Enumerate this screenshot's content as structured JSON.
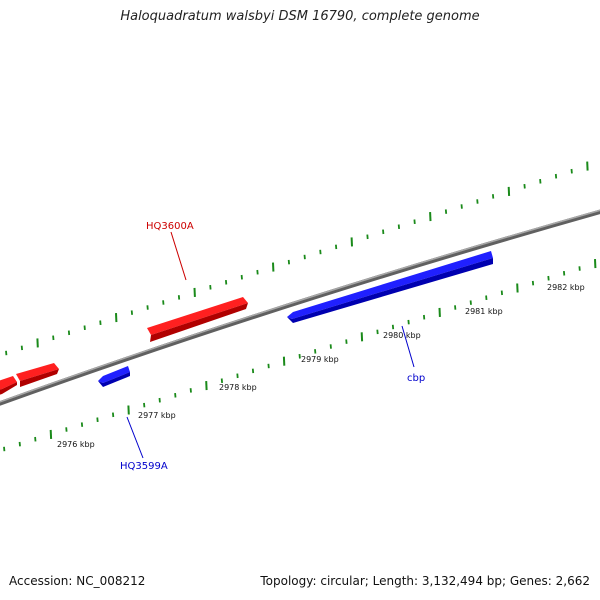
{
  "title": "Haloquadratum walsbyi DSM 16790, complete genome",
  "footer": {
    "accession": "Accession: NC_008212",
    "summary": "Topology: circular; Length: 3,132,494 bp; Genes: 2,662"
  },
  "colors": {
    "forward_gene": "#ff1a1a",
    "reverse_gene": "#1a1aff",
    "backbone": "#808080",
    "ticks": "#1a8a1a"
  },
  "scale_labels": [
    "2976 kbp",
    "2977 kbp",
    "2978 kbp",
    "2979 kbp",
    "2980 kbp",
    "2981 kbp",
    "2982 kbp"
  ],
  "gene_labels": {
    "hq3600a": "HQ3600A",
    "hq3599a": "HQ3599A",
    "cbp": "cbp"
  },
  "genes": [
    {
      "strand": "forward",
      "start_kbp": 2975.35,
      "end_kbp": 2975.55
    },
    {
      "strand": "forward",
      "start_kbp": 2975.6,
      "end_kbp": 2976.1
    },
    {
      "strand": "forward",
      "start_kbp": 2977.1,
      "end_kbp": 2978.35
    },
    {
      "strand": "reverse",
      "start_kbp": 2976.5,
      "end_kbp": 2976.9,
      "label": "HQ3599A"
    },
    {
      "strand": "reverse",
      "start_kbp": 2979.05,
      "end_kbp": 2981.6,
      "label": "cbp"
    }
  ]
}
